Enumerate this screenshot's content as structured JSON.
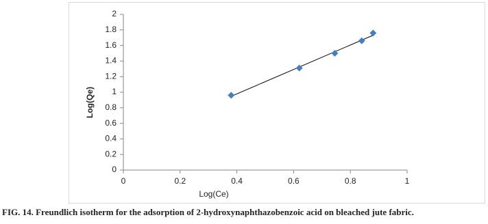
{
  "chart_data": {
    "type": "scatter",
    "x_label": "Log(Ce)",
    "y_label": "Log(Qe)",
    "series": [
      {
        "name": "Log(Qe)",
        "color": "#4a7ebb",
        "x": [
          0.38,
          0.62,
          0.745,
          0.84,
          0.88
        ],
        "values": [
          0.96,
          1.31,
          1.5,
          1.66,
          1.76
        ]
      }
    ],
    "trendline": "linear",
    "xlim": [
      0,
      1
    ],
    "xticks": [
      0,
      0.2,
      0.4,
      0.6,
      0.8,
      1
    ],
    "ylim": [
      0,
      2
    ],
    "yticks": [
      0,
      0.2,
      0.4,
      0.6,
      0.8,
      1,
      1.2,
      1.4,
      1.6,
      1.8,
      2
    ],
    "grid": false
  },
  "caption": "FIG. 14. Freundlich isotherm for the adsorption of 2-hydroxynaphthazobenzoic acid on bleached jute fabric."
}
